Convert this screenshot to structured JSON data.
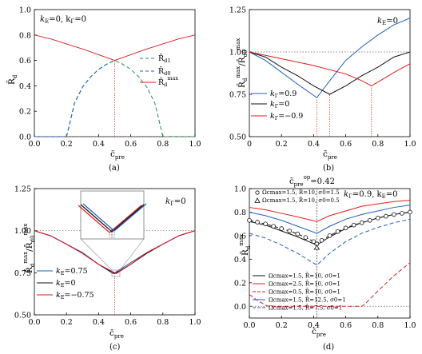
{
  "colors": {
    "red": "#e41a1c",
    "blue": "#1f5fbf",
    "green": "#2e8b57",
    "black": "#111111",
    "gray_ref": "#666666"
  },
  "chart_data": [
    {
      "type": "line",
      "caption": "(a)",
      "xlabel": "c̄pre",
      "ylabel": "R̄d",
      "xlim": [
        0,
        1
      ],
      "ylim": [
        0,
        1
      ],
      "xticks": [
        "0.0",
        "0.2",
        "0.4",
        "0.6",
        "0.8",
        "1.0"
      ],
      "yticks": [
        "0.0",
        "0.2",
        "0.4",
        "0.6",
        "0.8",
        "1.0"
      ],
      "annotation": "kE=0, kΓ=0",
      "legend_position": "right",
      "series": [
        {
          "name": "R̄d1",
          "color": "green",
          "dash": "dashed",
          "x": [
            0,
            0.2,
            0.2,
            0.25,
            0.3,
            0.35,
            0.4,
            0.45,
            0.5,
            0.55,
            0.6,
            0.65,
            0.7,
            0.75,
            0.8,
            0.8,
            1.0
          ],
          "y": [
            0,
            0,
            0,
            0.265,
            0.39,
            0.47,
            0.53,
            0.57,
            0.6,
            0.57,
            0.53,
            0.47,
            0.39,
            0.265,
            0,
            0,
            0
          ]
        },
        {
          "name": "R̄d0",
          "color": "blue",
          "dash": "dashed",
          "x": [
            0,
            0.2,
            0.22,
            0.25,
            0.3,
            0.35,
            0.4,
            0.45,
            0.5
          ],
          "y": [
            0,
            0,
            0.1,
            0.265,
            0.39,
            0.47,
            0.53,
            0.57,
            0.6
          ]
        },
        {
          "name": "R̄d^max",
          "color": "red",
          "dash": "solid",
          "x": [
            0,
            0.1,
            0.2,
            0.3,
            0.4,
            0.5,
            0.6,
            0.7,
            0.8,
            0.9,
            1.0
          ],
          "y": [
            0.8,
            0.77,
            0.73,
            0.69,
            0.645,
            0.6,
            0.645,
            0.69,
            0.73,
            0.77,
            0.8
          ]
        }
      ],
      "reference_lines": [
        {
          "axis": "x",
          "value": 0.5
        },
        {
          "axis": "y",
          "value": 0
        }
      ]
    },
    {
      "type": "line",
      "caption": "(b)",
      "xlabel": "c̄pre",
      "ylabel": "R̄d^max / R̄d0^max",
      "xlim": [
        0,
        1
      ],
      "ylim": [
        0.5,
        1.25
      ],
      "xticks": [
        "0",
        "0.2",
        "0.4",
        "0.6",
        "0.8",
        "1.0"
      ],
      "yticks": [
        "0.50",
        "0.75",
        "1.00",
        "1.25"
      ],
      "annotation": "kE=0",
      "legend_position": "bottom-left",
      "series": [
        {
          "name": "kΓ=0.9",
          "color": "blue",
          "dash": "solid",
          "x": [
            0,
            0.1,
            0.2,
            0.3,
            0.42,
            0.5,
            0.6,
            0.7,
            0.8,
            0.9,
            1.0
          ],
          "y": [
            1.0,
            0.95,
            0.88,
            0.81,
            0.73,
            0.83,
            0.95,
            1.03,
            1.1,
            1.16,
            1.2
          ]
        },
        {
          "name": "kΓ=0",
          "color": "black",
          "dash": "solid",
          "x": [
            0,
            0.1,
            0.2,
            0.3,
            0.4,
            0.5,
            0.6,
            0.7,
            0.8,
            0.9,
            1.0
          ],
          "y": [
            1.0,
            0.97,
            0.91,
            0.86,
            0.8,
            0.75,
            0.8,
            0.86,
            0.91,
            0.97,
            1.0
          ]
        },
        {
          "name": "kΓ=−0.9",
          "color": "red",
          "dash": "solid",
          "x": [
            0,
            0.2,
            0.4,
            0.6,
            0.7,
            0.76,
            0.85,
            0.92,
            1.0
          ],
          "y": [
            1.0,
            0.96,
            0.92,
            0.87,
            0.83,
            0.8,
            0.85,
            0.89,
            0.93
          ]
        }
      ],
      "reference_lines": [
        {
          "axis": "y",
          "value": 1.0
        },
        {
          "axis": "x",
          "value": 0.42
        },
        {
          "axis": "x",
          "value": 0.5
        },
        {
          "axis": "x",
          "value": 0.76
        }
      ]
    },
    {
      "type": "line",
      "caption": "(c)",
      "xlabel": "c̄pre",
      "ylabel": "R̄d^max / R̄d0^max",
      "xlim": [
        0,
        1
      ],
      "ylim": [
        0.5,
        1.25
      ],
      "xticks": [
        "0.0",
        "0.2",
        "0.4",
        "0.6",
        "0.8",
        "1.0"
      ],
      "yticks": [
        "0.50",
        "0.75",
        "1.00",
        "1.25"
      ],
      "annotation": "kΓ=0",
      "legend_position": "bottom-left",
      "series": [
        {
          "name": "kE=0.75",
          "color": "blue",
          "dash": "solid",
          "x": [
            0,
            0.1,
            0.2,
            0.3,
            0.4,
            0.49,
            0.5,
            0.6,
            0.7,
            0.8,
            0.9,
            1.0
          ],
          "y": [
            1.0,
            0.97,
            0.92,
            0.87,
            0.8,
            0.745,
            0.75,
            0.81,
            0.87,
            0.92,
            0.97,
            1.0
          ]
        },
        {
          "name": "kE=0",
          "color": "black",
          "dash": "solid",
          "x": [
            0,
            0.1,
            0.2,
            0.3,
            0.4,
            0.5,
            0.6,
            0.7,
            0.8,
            0.9,
            1.0
          ],
          "y": [
            1.0,
            0.97,
            0.92,
            0.865,
            0.8,
            0.745,
            0.8,
            0.865,
            0.92,
            0.97,
            1.0
          ]
        },
        {
          "name": "kE=−0.75",
          "color": "red",
          "dash": "solid",
          "x": [
            0,
            0.1,
            0.2,
            0.3,
            0.4,
            0.5,
            0.51,
            0.6,
            0.7,
            0.8,
            0.9,
            1.0
          ],
          "y": [
            1.0,
            0.97,
            0.92,
            0.865,
            0.8,
            0.75,
            0.745,
            0.8,
            0.87,
            0.92,
            0.97,
            1.0
          ]
        }
      ],
      "reference_lines": [
        {
          "axis": "y",
          "value": 1.0
        },
        {
          "axis": "x",
          "value": 0.5
        }
      ]
    },
    {
      "type": "line",
      "caption": "(d)",
      "xlabel": "c̄pre",
      "ylabel": "R̄d^max",
      "xlim": [
        0,
        1
      ],
      "ylim": [
        -0.1,
        1.0
      ],
      "xticks": [
        "0.0",
        "0.2",
        "0.4",
        "0.6",
        "0.8",
        "1.0"
      ],
      "yticks": [
        "0.0",
        "0.2",
        "0.4",
        "0.6",
        "0.8",
        "1.0"
      ],
      "top_annotation": "c̄pre^op = 0.42",
      "annotation": "kΓ=0.9, kE=0",
      "legend_position": "bottom-left",
      "series": [
        {
          "name": "Ωcmax=1.5, R̄=10, σ0=1",
          "color": "black",
          "dash": "solid",
          "x": [
            0,
            0.1,
            0.2,
            0.3,
            0.42,
            0.5,
            0.6,
            0.7,
            0.8,
            0.9,
            1.0
          ],
          "y": [
            0.72,
            0.69,
            0.64,
            0.59,
            0.52,
            0.59,
            0.66,
            0.71,
            0.75,
            0.78,
            0.8
          ]
        },
        {
          "name": "Ωcmax=2.5, R̄=10, σ0=1",
          "color": "red",
          "dash": "solid",
          "x": [
            0,
            0.1,
            0.2,
            0.3,
            0.42,
            0.5,
            0.6,
            0.7,
            0.8,
            0.9,
            1.0
          ],
          "y": [
            0.84,
            0.82,
            0.79,
            0.76,
            0.72,
            0.77,
            0.81,
            0.85,
            0.87,
            0.89,
            0.9
          ]
        },
        {
          "name": "Ωcmax=0.5, R̄=10, σ0=1",
          "color": "red",
          "dash": "dashed",
          "x": [
            0,
            0.05,
            0.1,
            0.12,
            0.42,
            0.7,
            0.72,
            0.8,
            0.9,
            1.0
          ],
          "y": [
            0.1,
            0.05,
            0.01,
            0,
            0,
            0,
            0.02,
            0.13,
            0.26,
            0.37
          ]
        },
        {
          "name": "Ωcmax=1.5, R̄=12.5, σ0=1",
          "color": "blue",
          "dash": "solid",
          "x": [
            0,
            0.1,
            0.2,
            0.3,
            0.42,
            0.5,
            0.6,
            0.7,
            0.8,
            0.9,
            1.0
          ],
          "y": [
            0.8,
            0.77,
            0.73,
            0.68,
            0.62,
            0.68,
            0.74,
            0.78,
            0.81,
            0.84,
            0.86
          ]
        },
        {
          "name": "Ωcmax=1.5, R̄=7.5, σ0=1",
          "color": "blue",
          "dash": "dashed",
          "x": [
            0,
            0.1,
            0.2,
            0.3,
            0.42,
            0.5,
            0.6,
            0.7,
            0.8,
            0.9,
            1.0
          ],
          "y": [
            0.62,
            0.58,
            0.52,
            0.45,
            0.35,
            0.45,
            0.55,
            0.62,
            0.67,
            0.71,
            0.74
          ]
        },
        {
          "name": "Ωcmax=1.5, R̄=10, σ0=1.5",
          "color": "black",
          "dash": "dashed",
          "marker": "circle",
          "x": [
            0,
            0.05,
            0.1,
            0.15,
            0.2,
            0.25,
            0.3,
            0.35,
            0.4,
            0.42,
            0.45,
            0.5,
            0.55,
            0.6,
            0.65,
            0.7,
            0.75,
            0.8,
            0.85,
            0.9,
            0.95,
            1.0
          ],
          "y": [
            0.73,
            0.715,
            0.7,
            0.68,
            0.66,
            0.64,
            0.615,
            0.585,
            0.55,
            0.53,
            0.56,
            0.6,
            0.635,
            0.665,
            0.69,
            0.71,
            0.73,
            0.75,
            0.765,
            0.78,
            0.79,
            0.8
          ]
        },
        {
          "name": "Ωcmax=1.5, R̄=10, σ0=0.5",
          "color": "black",
          "dash": "dashed",
          "marker": "triangle",
          "x": [
            0.42
          ],
          "y": [
            0.5
          ]
        }
      ],
      "reference_lines": [
        {
          "axis": "y",
          "value": 0
        },
        {
          "axis": "x",
          "value": 0.42
        }
      ]
    }
  ],
  "figure_text": {
    "a": {
      "ann_kE": "k",
      "ann_kE_sub": "E",
      "ann_eq0": "=0, k",
      "ann_kG_sub": "Γ",
      "ann_tail": "=0",
      "leg1": "R̄",
      "leg1_sub": "d1",
      "leg2": "R̄",
      "leg2_sub": "d0",
      "leg3": "R̄",
      "leg3_sub": "d",
      "leg3_sup": "max",
      "ylab": "R̄",
      "ylab_sub": "d"
    },
    "b": {
      "ann": "k",
      "ann_sub": "E",
      "ann_tail": "=0",
      "leg1": "k",
      "leg1_sub": "Γ",
      "leg1_tail": "=0.9",
      "leg2": "k",
      "leg2_sub": "Γ",
      "leg2_tail": "=0",
      "leg3": "k",
      "leg3_sub": "Γ",
      "leg3_tail": "=−0.9"
    },
    "c": {
      "ann": "k",
      "ann_sub": "Γ",
      "ann_tail": "=0",
      "leg1": "k",
      "leg1_sub": "E",
      "leg1_tail": "=0.75",
      "leg2": "k",
      "leg2_sub": "E",
      "leg2_tail": "=0",
      "leg3": "k",
      "leg3_sub": "E",
      "leg3_tail": "=−0.75"
    },
    "d": {
      "top": "c̄",
      "top_sub": "pre",
      "top_sup": "op",
      "top_tail": "=0.42",
      "ann": "k",
      "ann_sub": "Γ",
      "ann_mid": "=0.9, k",
      "ann_sub2": "E",
      "ann_tail": "=0",
      "ylab": "R̄",
      "ylab_sub": "d",
      "ylab_sup": "max"
    },
    "xlab": "c̄",
    "xlab_sub": "pre",
    "ratio_num": "R̄",
    "ratio_num_sub": "d",
    "ratio_num_sup": "max",
    "ratio_den": "/R̄",
    "ratio_den_sub": "d0",
    "ratio_den_sup": "max"
  }
}
